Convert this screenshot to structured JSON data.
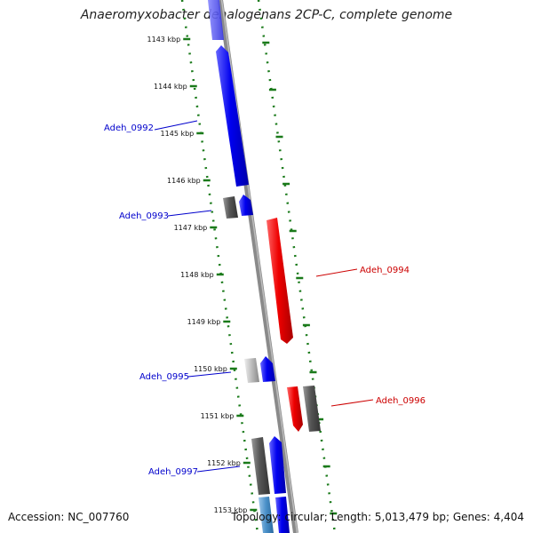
{
  "title": "Anaeromyxobacter dehalogenans 2CP-C, complete genome",
  "accession": "Accession: NC_007760",
  "summary": "Topology: circular; Length: 5,013,479 bp; Genes: 4,404",
  "colors": {
    "forward": "#0000ee",
    "reverse": "#ee0000",
    "other": "#555555",
    "rna": "#4a90c8",
    "backbone": "#888888",
    "tick": "#1a7a1a",
    "label_blue": "#0000cc",
    "label_red": "#cc0000"
  },
  "ticks": [
    "1143 kbp",
    "1144 kbp",
    "1145 kbp",
    "1146 kbp",
    "1147 kbp",
    "1148 kbp",
    "1149 kbp",
    "1150 kbp",
    "1151 kbp",
    "1152 kbp",
    "1153 kbp"
  ],
  "genes": [
    {
      "label": "Adeh_0992",
      "color": "label_blue"
    },
    {
      "label": "Adeh_0993",
      "color": "label_blue"
    },
    {
      "label": "Adeh_0994",
      "color": "label_red"
    },
    {
      "label": "Adeh_0995",
      "color": "label_blue"
    },
    {
      "label": "Adeh_0996",
      "color": "label_red"
    },
    {
      "label": "Adeh_0997",
      "color": "label_blue"
    }
  ]
}
